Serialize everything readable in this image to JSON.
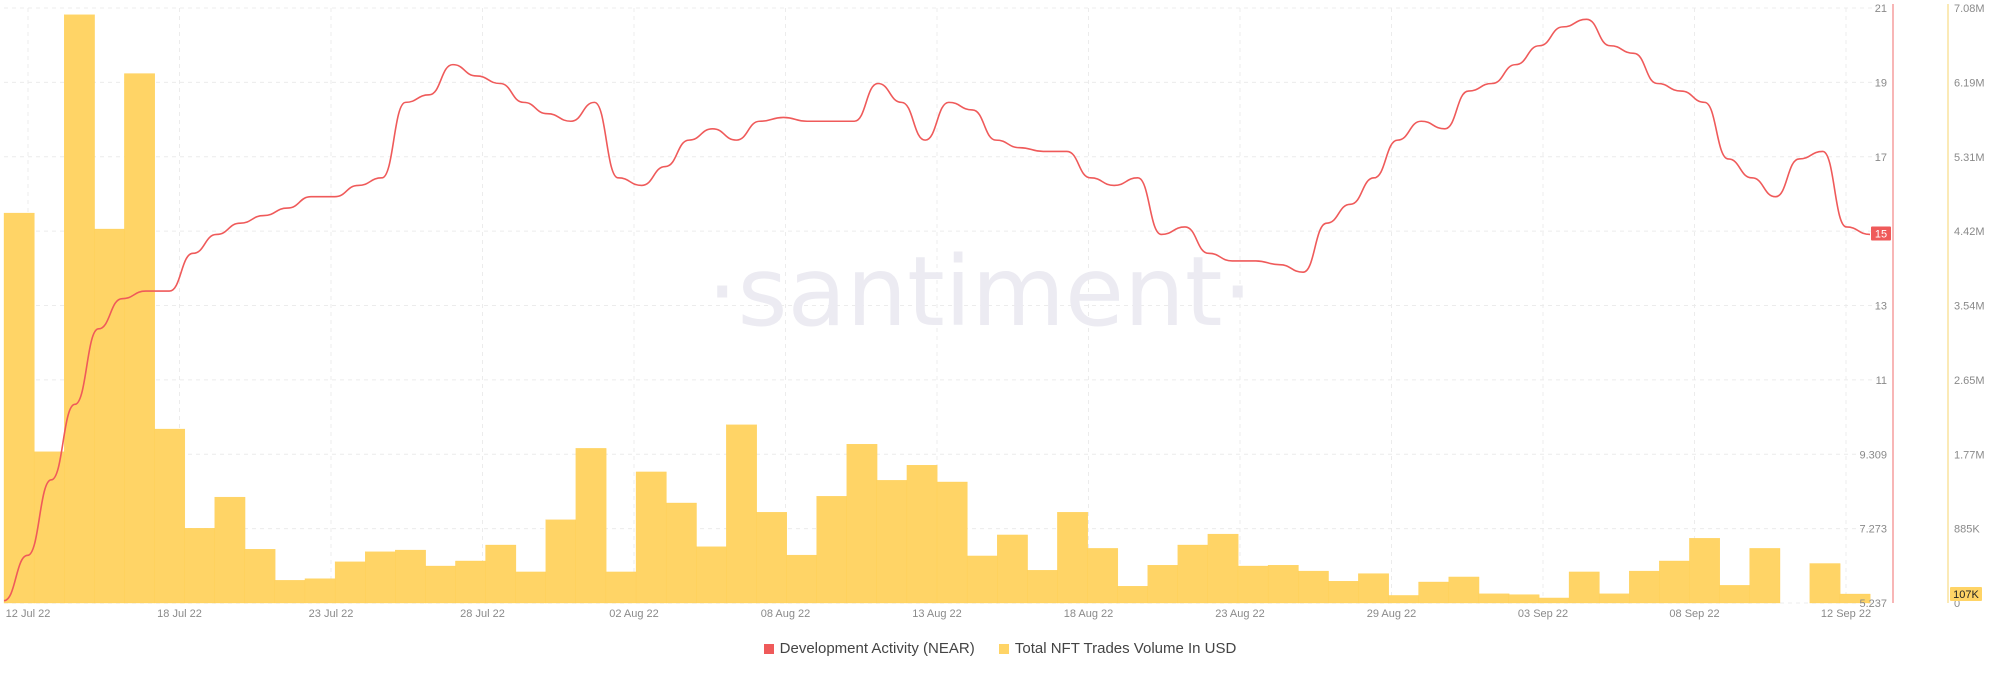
{
  "brand": "·santiment·",
  "colors": {
    "line": "#ef5a5a",
    "bar": "#ffd466",
    "bar_edge": "#ffce4f",
    "grid": "#ececec",
    "axis_left": "#f06e6e",
    "axis_right": "#f7d56c"
  },
  "legend": [
    {
      "label": "Development Activity (NEAR)",
      "color": "#ef5a5a"
    },
    {
      "label": "Total NFT Trades Volume In USD",
      "color": "#ffd466"
    }
  ],
  "chart_data": {
    "type": "bar+line",
    "x_ticks": [
      "12 Jul 22",
      "18 Jul 22",
      "23 Jul 22",
      "28 Jul 22",
      "02 Aug 22",
      "08 Aug 22",
      "13 Aug 22",
      "18 Aug 22",
      "23 Aug 22",
      "29 Aug 22",
      "03 Sep 22",
      "08 Sep 22",
      "12 Sep 22"
    ],
    "y_left": {
      "ticks": [
        "5.237",
        "7.273",
        "9.309",
        "11",
        "13",
        "15",
        "17",
        "19",
        "21"
      ],
      "range": [
        5.237,
        21
      ],
      "current_value": "15"
    },
    "y_right": {
      "ticks": [
        "0",
        "885K",
        "1.77M",
        "2.65M",
        "3.54M",
        "4.42M",
        "5.31M",
        "6.19M",
        "7.08M"
      ],
      "range": [
        0,
        7080000
      ],
      "current_value": "107K"
    },
    "series": [
      {
        "name": "Total NFT Trades Volume In USD",
        "kind": "bar",
        "values": [
          4640000,
          1800000,
          7000000,
          4450000,
          6300000,
          2070000,
          890000,
          1260000,
          640000,
          270000,
          290000,
          490000,
          610000,
          630000,
          440000,
          500000,
          690000,
          370000,
          990000,
          1840000,
          370000,
          1560000,
          1190000,
          670000,
          2120000,
          1080000,
          570000,
          1270000,
          1890000,
          1460000,
          1640000,
          1440000,
          560000,
          810000,
          390000,
          1080000,
          650000,
          200000,
          450000,
          690000,
          820000,
          440000,
          450000,
          380000,
          260000,
          350000,
          90000,
          250000,
          310000,
          110000,
          100000,
          60000,
          370000,
          110000,
          380000,
          500000,
          770000,
          210000,
          650000,
          0,
          470000,
          107000
        ]
      },
      {
        "name": "Development Activity (NEAR)",
        "kind": "line",
        "values": [
          5.3,
          6.5,
          8.5,
          10.5,
          12.5,
          13.3,
          13.5,
          13.5,
          14.5,
          15.0,
          15.3,
          15.5,
          15.7,
          16.0,
          16.0,
          16.3,
          16.5,
          18.5,
          18.7,
          19.5,
          19.2,
          19.0,
          18.5,
          18.2,
          18.0,
          18.5,
          16.5,
          16.3,
          16.8,
          17.5,
          17.8,
          17.5,
          18.0,
          18.1,
          18.0,
          18.0,
          18.0,
          19.0,
          18.5,
          17.5,
          18.5,
          18.3,
          17.5,
          17.3,
          17.2,
          17.2,
          16.5,
          16.3,
          16.5,
          15.0,
          15.2,
          14.5,
          14.3,
          14.3,
          14.2,
          14.0,
          15.3,
          15.8,
          16.5,
          17.5,
          18.0,
          17.8,
          18.8,
          19.0,
          19.5,
          20.0,
          20.5,
          20.7,
          20.0,
          19.8,
          19.0,
          18.8,
          18.5,
          17.0,
          16.5,
          16.0,
          17.0,
          17.2,
          15.2,
          15.0
        ]
      }
    ],
    "grid": true
  }
}
